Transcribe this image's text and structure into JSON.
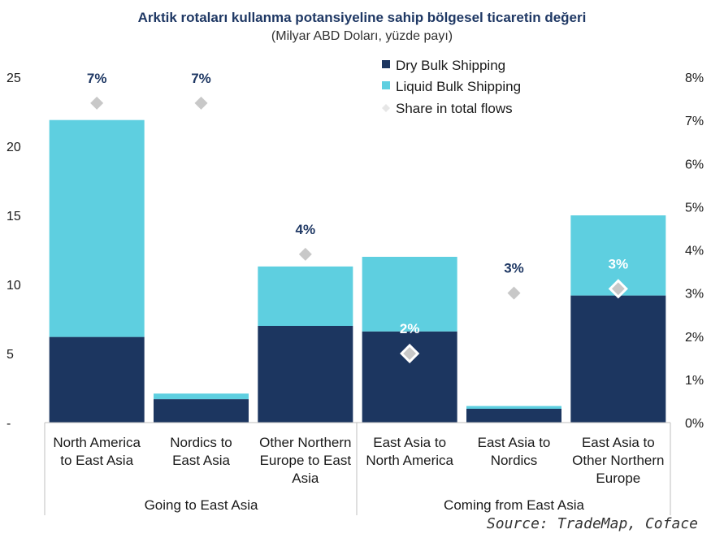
{
  "title": "Arktik rotaları kullanma potansiyeline sahip bölgesel ticaretin değeri",
  "subtitle": "(Milyar ABD Doları, yüzde payı)",
  "source": "Source: TradeMap, Coface",
  "colors": {
    "dry": "#1c3660",
    "liquid": "#5ecfe0",
    "marker": "#c8c8c8",
    "text": "#1a1a1a"
  },
  "chart_data": {
    "type": "bar",
    "stacked": true,
    "categories": [
      [
        "North America",
        "to East Asia"
      ],
      [
        "Nordics to",
        "East Asia"
      ],
      [
        "Other Northern",
        "Europe to East",
        "Asia"
      ],
      [
        "East Asia to",
        "North America"
      ],
      [
        "East Asia to",
        "Nordics"
      ],
      [
        "East Asia to",
        "Other Northern",
        "Europe"
      ]
    ],
    "groups": [
      {
        "label": "Going to East Asia",
        "from": 0,
        "to": 2
      },
      {
        "label": "Coming from East Asia",
        "from": 3,
        "to": 5
      }
    ],
    "series": [
      {
        "name": "Dry Bulk Shipping",
        "values": [
          6.2,
          1.7,
          7.0,
          6.6,
          1.0,
          9.2
        ]
      },
      {
        "name": "Liquid Bulk Shipping",
        "values": [
          15.7,
          0.4,
          4.3,
          5.4,
          0.2,
          5.8
        ]
      }
    ],
    "share": {
      "name": "Share in total flows",
      "values": [
        7.4,
        7.4,
        3.9,
        1.6,
        3.0,
        3.1
      ],
      "labels": [
        "7%",
        "7%",
        "4%",
        "2%",
        "3%",
        "3%"
      ]
    },
    "ylim": [
      0,
      25
    ],
    "yticks": [
      "-",
      "5",
      "10",
      "15",
      "20",
      "25"
    ],
    "y2lim": [
      0,
      8
    ],
    "y2ticks": [
      "0%",
      "1%",
      "2%",
      "3%",
      "4%",
      "5%",
      "6%",
      "7%",
      "8%"
    ],
    "legend_position": "top-right",
    "grid": false
  }
}
